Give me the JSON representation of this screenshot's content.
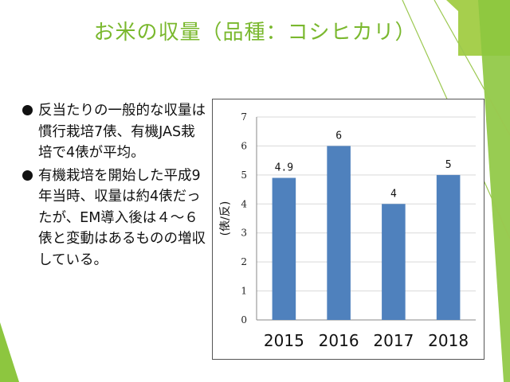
{
  "slide": {
    "title": "お米の収量（品種：コシヒカリ）",
    "bullets": [
      "反当たりの一般的な収量は慣行栽培7俵、有機JAS栽培で4俵が平均。",
      "有機栽培を開始した平成9年当時、収量は約4俵だったが、EM導入後は４～６俵と変動はあるものの増収している。"
    ]
  },
  "theme": {
    "accent": "#7ab82e",
    "accent_light": "#a6cf4d",
    "bar": "#4f81bd"
  },
  "chart_data": {
    "type": "bar",
    "categories": [
      "2015",
      "2016",
      "2017",
      "2018"
    ],
    "values": [
      4.9,
      6,
      4,
      5
    ],
    "data_labels": [
      "4.9",
      "6",
      "4",
      "5"
    ],
    "ylabel": "(俵/反)",
    "ylim": [
      0,
      7
    ],
    "yticks": [
      "0",
      "1",
      "2",
      "3",
      "4",
      "5",
      "6",
      "7"
    ],
    "grid": true,
    "legend": "none"
  }
}
